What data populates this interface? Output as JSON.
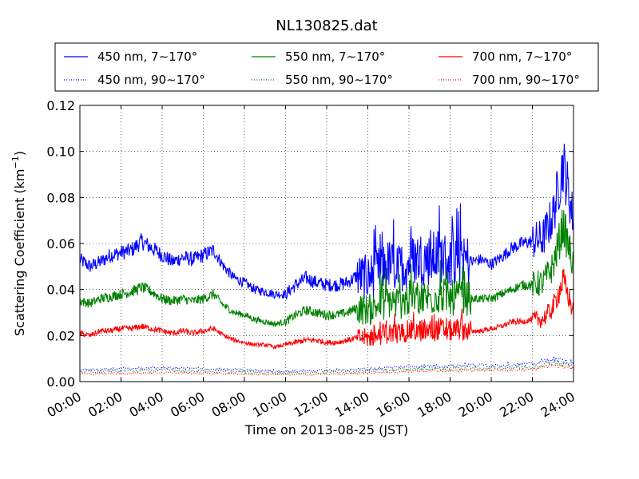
{
  "chart_data": {
    "type": "line",
    "title": "NL130825.dat",
    "xlabel": "Time on 2013-08-25 (JST)",
    "ylabel": "Scattering Coefficient (km",
    "ylabel_sup": "−1",
    "ylabel_close": ")",
    "xlim": [
      "00:00",
      "24:00"
    ],
    "ylim": [
      0,
      0.12
    ],
    "grid": true,
    "legend_placement": "top, above plot",
    "x_ticks": [
      "00:00",
      "02:00",
      "04:00",
      "06:00",
      "08:00",
      "10:00",
      "12:00",
      "14:00",
      "16:00",
      "18:00",
      "20:00",
      "22:00",
      "24:00"
    ],
    "y_ticks": [
      "0.00",
      "0.02",
      "0.04",
      "0.06",
      "0.08",
      "0.10",
      "0.12"
    ],
    "series": [
      {
        "name": "450 nm, 7∼170°",
        "color": "#0000ff",
        "style": "solid",
        "x": [
          0,
          0.5,
          1,
          1.5,
          2,
          2.5,
          3,
          3.5,
          4,
          4.5,
          5,
          5.5,
          6,
          6.5,
          7,
          7.5,
          8,
          8.5,
          9,
          9.5,
          10,
          10.5,
          11,
          11.5,
          12,
          12.5,
          13,
          13.5,
          14,
          14.5,
          15,
          15.5,
          16,
          16.5,
          17,
          17.5,
          18,
          18.5,
          19,
          19.5,
          20,
          20.5,
          21,
          21.5,
          22,
          22.5,
          23,
          23.5,
          24
        ],
        "values": [
          0.053,
          0.05,
          0.052,
          0.055,
          0.056,
          0.057,
          0.061,
          0.058,
          0.055,
          0.052,
          0.054,
          0.053,
          0.055,
          0.057,
          0.05,
          0.045,
          0.043,
          0.04,
          0.039,
          0.038,
          0.038,
          0.042,
          0.045,
          0.043,
          0.042,
          0.042,
          0.043,
          0.046,
          0.045,
          0.048,
          0.051,
          0.049,
          0.052,
          0.054,
          0.053,
          0.055,
          0.052,
          0.054,
          0.052,
          0.053,
          0.051,
          0.054,
          0.058,
          0.06,
          0.061,
          0.062,
          0.072,
          0.095,
          0.07
        ]
      },
      {
        "name": "550 nm, 7∼170°",
        "color": "#008000",
        "style": "solid",
        "x": [
          0,
          0.5,
          1,
          1.5,
          2,
          2.5,
          3,
          3.5,
          4,
          4.5,
          5,
          5.5,
          6,
          6.5,
          7,
          7.5,
          8,
          8.5,
          9,
          9.5,
          10,
          10.5,
          11,
          11.5,
          12,
          12.5,
          13,
          13.5,
          14,
          14.5,
          15,
          15.5,
          16,
          16.5,
          17,
          17.5,
          18,
          18.5,
          19,
          19.5,
          20,
          20.5,
          21,
          21.5,
          22,
          22.5,
          23,
          23.5,
          24
        ],
        "values": [
          0.035,
          0.034,
          0.036,
          0.037,
          0.038,
          0.039,
          0.041,
          0.039,
          0.036,
          0.035,
          0.036,
          0.035,
          0.036,
          0.038,
          0.033,
          0.03,
          0.029,
          0.027,
          0.026,
          0.025,
          0.026,
          0.029,
          0.031,
          0.03,
          0.029,
          0.029,
          0.03,
          0.032,
          0.031,
          0.033,
          0.035,
          0.034,
          0.036,
          0.037,
          0.036,
          0.038,
          0.036,
          0.037,
          0.036,
          0.036,
          0.036,
          0.038,
          0.04,
          0.042,
          0.042,
          0.043,
          0.05,
          0.068,
          0.05
        ]
      },
      {
        "name": "700 nm, 7∼170°",
        "color": "#ff0000",
        "style": "solid",
        "x": [
          0,
          0.5,
          1,
          1.5,
          2,
          2.5,
          3,
          3.5,
          4,
          4.5,
          5,
          5.5,
          6,
          6.5,
          7,
          7.5,
          8,
          8.5,
          9,
          9.5,
          10,
          10.5,
          11,
          11.5,
          12,
          12.5,
          13,
          13.5,
          14,
          14.5,
          15,
          15.5,
          16,
          16.5,
          17,
          17.5,
          18,
          18.5,
          19,
          19.5,
          20,
          20.5,
          21,
          21.5,
          22,
          22.5,
          23,
          23.5,
          24
        ],
        "values": [
          0.021,
          0.02,
          0.022,
          0.022,
          0.023,
          0.023,
          0.024,
          0.023,
          0.022,
          0.021,
          0.022,
          0.021,
          0.022,
          0.023,
          0.02,
          0.018,
          0.017,
          0.016,
          0.016,
          0.015,
          0.016,
          0.017,
          0.018,
          0.018,
          0.017,
          0.017,
          0.018,
          0.019,
          0.019,
          0.02,
          0.021,
          0.021,
          0.022,
          0.022,
          0.022,
          0.023,
          0.022,
          0.023,
          0.022,
          0.022,
          0.023,
          0.024,
          0.026,
          0.026,
          0.027,
          0.027,
          0.032,
          0.044,
          0.03
        ]
      },
      {
        "name": "450 nm, 90∼170°",
        "color": "#0000ff",
        "style": "dotted",
        "x": [
          0,
          2,
          4,
          6,
          8,
          10,
          12,
          14,
          16,
          18,
          20,
          22,
          23,
          24
        ],
        "values": [
          0.005,
          0.0055,
          0.006,
          0.0055,
          0.005,
          0.0045,
          0.0048,
          0.0055,
          0.0065,
          0.007,
          0.0072,
          0.0075,
          0.01,
          0.008
        ]
      },
      {
        "name": "550 nm, 90∼170°",
        "color": "#008000",
        "style": "dotted",
        "x": [
          0,
          2,
          4,
          6,
          8,
          10,
          12,
          14,
          16,
          18,
          20,
          22,
          23,
          24
        ],
        "values": [
          0.0042,
          0.0045,
          0.005,
          0.0046,
          0.0041,
          0.0038,
          0.004,
          0.0046,
          0.0054,
          0.0058,
          0.006,
          0.0062,
          0.0085,
          0.0068
        ]
      },
      {
        "name": "700 nm, 90∼170°",
        "color": "#ff0000",
        "style": "dotted",
        "x": [
          0,
          2,
          4,
          6,
          8,
          10,
          12,
          14,
          16,
          18,
          20,
          22,
          23,
          24
        ],
        "values": [
          0.0033,
          0.0036,
          0.004,
          0.0037,
          0.0033,
          0.003,
          0.0032,
          0.0037,
          0.0044,
          0.0048,
          0.005,
          0.0052,
          0.0072,
          0.0056
        ]
      }
    ]
  }
}
